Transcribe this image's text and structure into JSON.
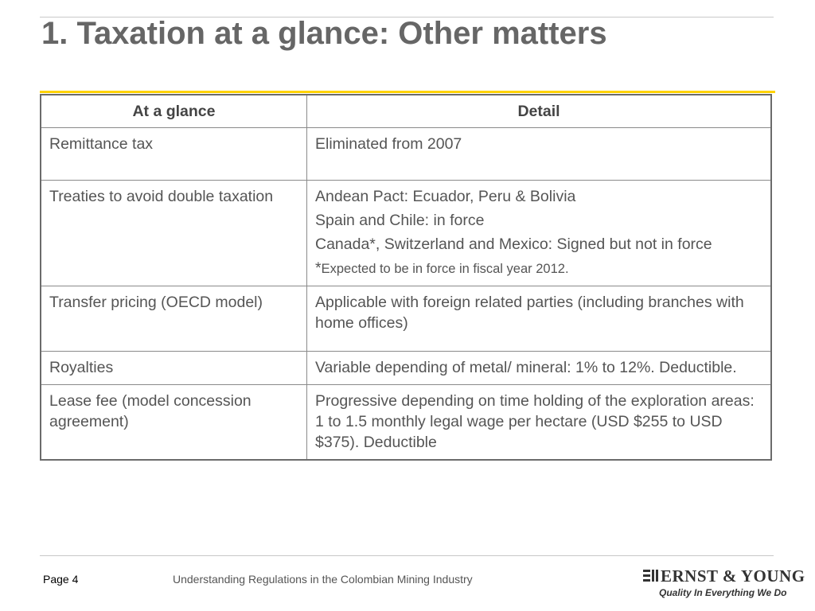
{
  "slide": {
    "title": "1. Taxation at a glance: Other matters"
  },
  "table": {
    "headers": [
      "At a glance",
      "Detail"
    ],
    "rows": [
      {
        "label": "Remittance tax",
        "detail": [
          "Eliminated from 2007"
        ]
      },
      {
        "label": "Treaties to avoid double taxation",
        "detail": [
          "Andean Pact: Ecuador, Peru & Bolivia",
          "Spain and Chile: in force",
          "Canada*, Switzerland and Mexico: Signed but not in force"
        ],
        "footnote_mark": "*",
        "footnote": "Expected to be in force in fiscal year 2012."
      },
      {
        "label": "Transfer pricing (OECD model)",
        "detail": [
          "Applicable with foreign related parties (including branches with home offices)"
        ]
      },
      {
        "label": "Royalties",
        "detail": [
          "Variable depending of metal/ mineral: 1% to 12%. Deductible."
        ]
      },
      {
        "label": "Lease fee (model concession agreement)",
        "detail": [
          "Progressive depending on time holding of the exploration areas: 1 to 1.5 monthly legal wage per hectare (USD $255 to USD $375). Deductible"
        ]
      }
    ]
  },
  "footer": {
    "page": "Page 4",
    "text": "Understanding Regulations in the Colombian Mining Industry",
    "logo_name": "ERNST & YOUNG",
    "logo_tagline": "Quality In Everything We Do"
  },
  "colors": {
    "title": "#666666",
    "accent": "#ffd200",
    "table_border": "#6b6b6b",
    "text": "#555555"
  }
}
